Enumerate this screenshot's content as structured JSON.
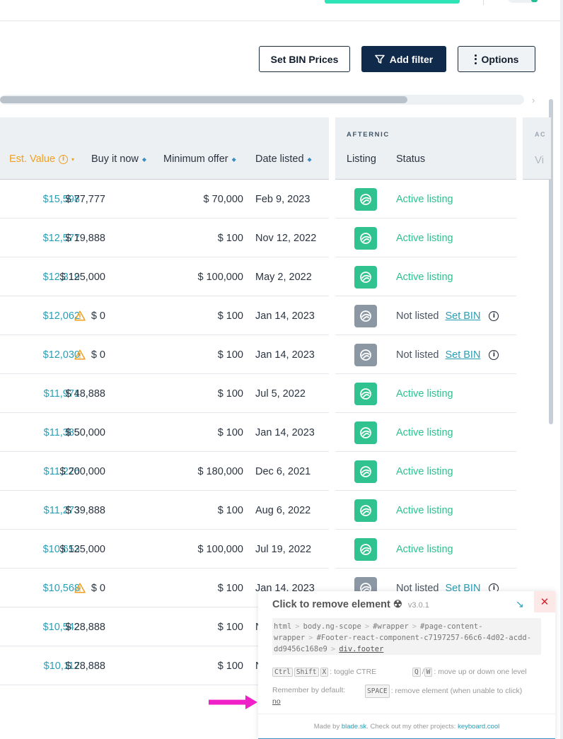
{
  "toolbar": {
    "set_bin_prices": "Set BIN Prices",
    "add_filter": "Add filter",
    "options": "Options"
  },
  "table": {
    "columns": {
      "est_value": "Est. Value",
      "buy_it_now": "Buy it now",
      "minimum_offer": "Minimum offer",
      "date_listed": "Date listed"
    },
    "afternic_group": "AFTERNIC",
    "afternic_columns": {
      "listing": "Listing",
      "status": "Status"
    },
    "next_group": "AC",
    "next_column": "Vi",
    "rows": [
      {
        "est": "$15,598",
        "bin": "$ 77,777",
        "bin_warn": false,
        "min": "$ 70,000",
        "date": "Feb 9, 2023",
        "listed": true,
        "status": "Active listing"
      },
      {
        "est": "$12,577",
        "bin": "$ 19,888",
        "bin_warn": false,
        "min": "$ 100",
        "date": "Nov 12, 2022",
        "listed": true,
        "status": "Active listing"
      },
      {
        "est": "$12,319",
        "bin": "$ 125,000",
        "bin_warn": false,
        "min": "$ 100,000",
        "date": "May 2, 2022",
        "listed": true,
        "status": "Active listing"
      },
      {
        "est": "$12,062",
        "bin": "$ 0",
        "bin_warn": true,
        "min": "$ 100",
        "date": "Jan 14, 2023",
        "listed": false,
        "status": "Not listed",
        "action": "Set BIN"
      },
      {
        "est": "$12,030",
        "bin": "$ 0",
        "bin_warn": true,
        "min": "$ 100",
        "date": "Jan 14, 2023",
        "listed": false,
        "status": "Not listed",
        "action": "Set BIN"
      },
      {
        "est": "$11,971",
        "bin": "$ 48,888",
        "bin_warn": false,
        "min": "$ 100",
        "date": "Jul 5, 2022",
        "listed": true,
        "status": "Active listing"
      },
      {
        "est": "$11,385",
        "bin": "$ 50,000",
        "bin_warn": false,
        "min": "$ 100",
        "date": "Jan 14, 2023",
        "listed": true,
        "status": "Active listing"
      },
      {
        "est": "$11,276",
        "bin": "$ 200,000",
        "bin_warn": false,
        "min": "$ 180,000",
        "date": "Dec 6, 2021",
        "listed": true,
        "status": "Active listing"
      },
      {
        "est": "$11,273",
        "bin": "$ 39,888",
        "bin_warn": false,
        "min": "$ 100",
        "date": "Aug 6, 2022",
        "listed": true,
        "status": "Active listing"
      },
      {
        "est": "$10,653",
        "bin": "$ 125,000",
        "bin_warn": false,
        "min": "$ 100,000",
        "date": "Jul 19, 2022",
        "listed": true,
        "status": "Active listing"
      },
      {
        "est": "$10,568",
        "bin": "$ 0",
        "bin_warn": true,
        "min": "$ 100",
        "date": "Jan 14, 2023",
        "listed": false,
        "status": "Not listed",
        "action": "Set BIN"
      },
      {
        "est": "$10,542",
        "bin": "$ 28,888",
        "bin_warn": false,
        "min": "$ 100",
        "date": "N",
        "listed": null,
        "status": ""
      },
      {
        "est": "$10,117",
        "bin": "$ 28,888",
        "bin_warn": false,
        "min": "$ 100",
        "date": "N",
        "listed": null,
        "status": ""
      }
    ]
  },
  "ctre": {
    "title": "Click to remove element",
    "symbol": "☢",
    "version": "v3.0.1",
    "move_icon": "↘",
    "close_icon": "✕",
    "path": [
      "html",
      "body.ng-scope",
      "#wrapper",
      "#page-content-wrapper",
      "#Footer-react-component-c7197257-66c6-4d02-acdd-dd9456c168e9",
      "div.footer"
    ],
    "keys_toggle": [
      "Ctrl",
      "Shift",
      "X"
    ],
    "toggle_text": ": toggle CTRE",
    "keys_move": [
      "Q",
      "W"
    ],
    "move_text": ": move up or down one level",
    "remember_label": "Remember by default:",
    "remember_value": "no",
    "key_space": "SPACE",
    "space_text": ": remove element (when unable to click)",
    "made_by_prefix": "Made by ",
    "made_by_link": "blade.sk",
    "made_by_middle": ". Check out my other projects: ",
    "made_by_link2": "keyboard.cool"
  },
  "colors": {
    "accent_teal": "#2a9db5",
    "active_green": "#30c38f",
    "sorted_orange": "#f0a020",
    "dark_navy": "#0f2a4a",
    "arrow_pink": "#f020c8"
  }
}
